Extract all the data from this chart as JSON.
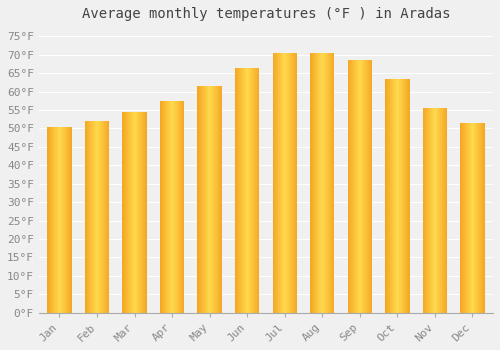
{
  "title": "Average monthly temperatures (°F ) in Aradas",
  "months": [
    "Jan",
    "Feb",
    "Mar",
    "Apr",
    "May",
    "Jun",
    "Jul",
    "Aug",
    "Sep",
    "Oct",
    "Nov",
    "Dec"
  ],
  "values": [
    50.5,
    52.0,
    54.5,
    57.5,
    61.5,
    66.5,
    70.5,
    70.5,
    68.5,
    63.5,
    55.5,
    51.5
  ],
  "bar_color_edge": "#F5A623",
  "bar_color_center": "#FFD94D",
  "yticks": [
    0,
    5,
    10,
    15,
    20,
    25,
    30,
    35,
    40,
    45,
    50,
    55,
    60,
    65,
    70,
    75
  ],
  "ylim": [
    0,
    77
  ],
  "background_color": "#f0f0f0",
  "grid_color": "#ffffff",
  "title_fontsize": 10,
  "tick_fontsize": 8,
  "title_font": "monospace"
}
